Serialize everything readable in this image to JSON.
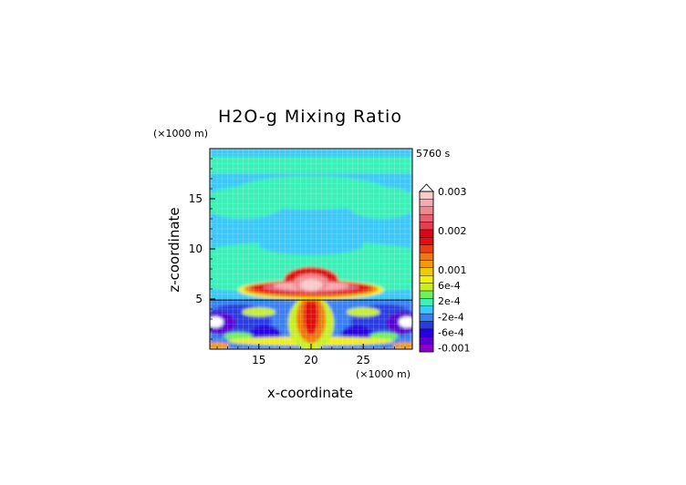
{
  "chart_data": {
    "type": "heatmap",
    "title": "H2O-g Mixing Ratio",
    "time_label": "5760 s",
    "xlabel": "x-coordinate",
    "ylabel": "z-coordinate",
    "x_unit": "(×1000 m)",
    "y_unit": "(×1000 m)",
    "xlim": [
      10.3,
      29.7
    ],
    "ylim": [
      0,
      20
    ],
    "x_ticks": [
      15,
      20,
      25
    ],
    "y_ticks": [
      5,
      10,
      15
    ],
    "colorbar": {
      "labels": [
        "0.003",
        "0.002",
        "0.001",
        "6e-4",
        "2e-4",
        "-2e-4",
        "-6e-4",
        "-0.001"
      ],
      "label_values": [
        0.003,
        0.002,
        0.001,
        0.0006,
        0.0002,
        -0.0002,
        -0.0006,
        -0.001
      ],
      "range": [
        -0.0011,
        0.003
      ],
      "extend": "max",
      "colors": [
        "#8a00c8",
        "#5a00d0",
        "#2800e0",
        "#2a3ce0",
        "#3a7ff0",
        "#3cc8f8",
        "#3cf0b8",
        "#70f060",
        "#c8f020",
        "#f0f010",
        "#f0c810",
        "#f09a10",
        "#f07810",
        "#e84010",
        "#e01010",
        "#d80818",
        "#e04050",
        "#e86070",
        "#f08a90",
        "#f4aab0",
        "#f8caca"
      ],
      "over_color": "#ffffff"
    }
  }
}
